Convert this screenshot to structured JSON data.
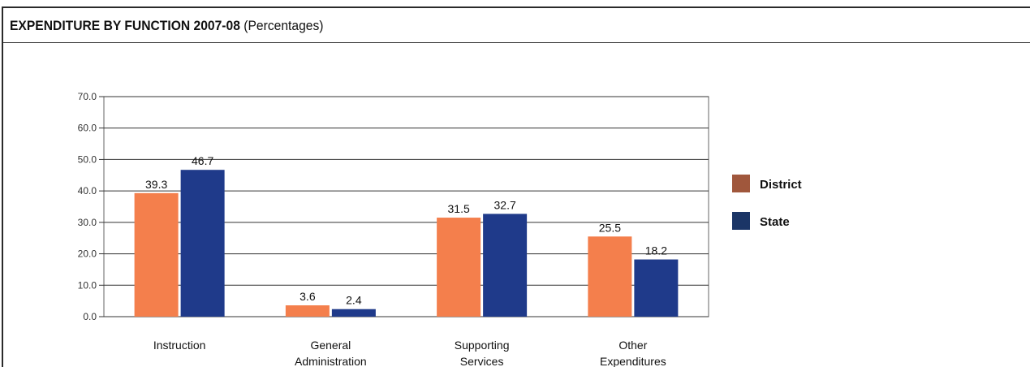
{
  "header": {
    "title_bold": "EXPENDITURE BY FUNCTION 2007-08",
    "title_sub": "(Percentages)"
  },
  "chart_data": {
    "type": "bar",
    "categories": [
      [
        "Instruction"
      ],
      [
        "General",
        "Administration"
      ],
      [
        "Supporting",
        "Services"
      ],
      [
        "Other",
        "Expenditures"
      ]
    ],
    "series": [
      {
        "name": "District",
        "values": [
          39.3,
          3.6,
          31.5,
          25.5
        ],
        "color": "#f47f4c"
      },
      {
        "name": "State",
        "values": [
          46.7,
          2.4,
          32.7,
          18.2
        ],
        "color": "#1f3a8a"
      }
    ],
    "value_labels": {
      "District": [
        "39.3",
        "3.6",
        "31.5",
        "25.5"
      ],
      "State": [
        "46.7",
        "2.4",
        "32.7",
        "18.2"
      ]
    },
    "yticks": [
      "0.0",
      "10.0",
      "20.0",
      "30.0",
      "40.0",
      "50.0",
      "60.0",
      "70.0"
    ],
    "ylim": [
      0,
      70
    ],
    "grid": true,
    "legend": {
      "placement": "right",
      "items": [
        {
          "label": "District",
          "color": "#a0573c"
        },
        {
          "label": "State",
          "color": "#1b3566"
        }
      ]
    }
  }
}
